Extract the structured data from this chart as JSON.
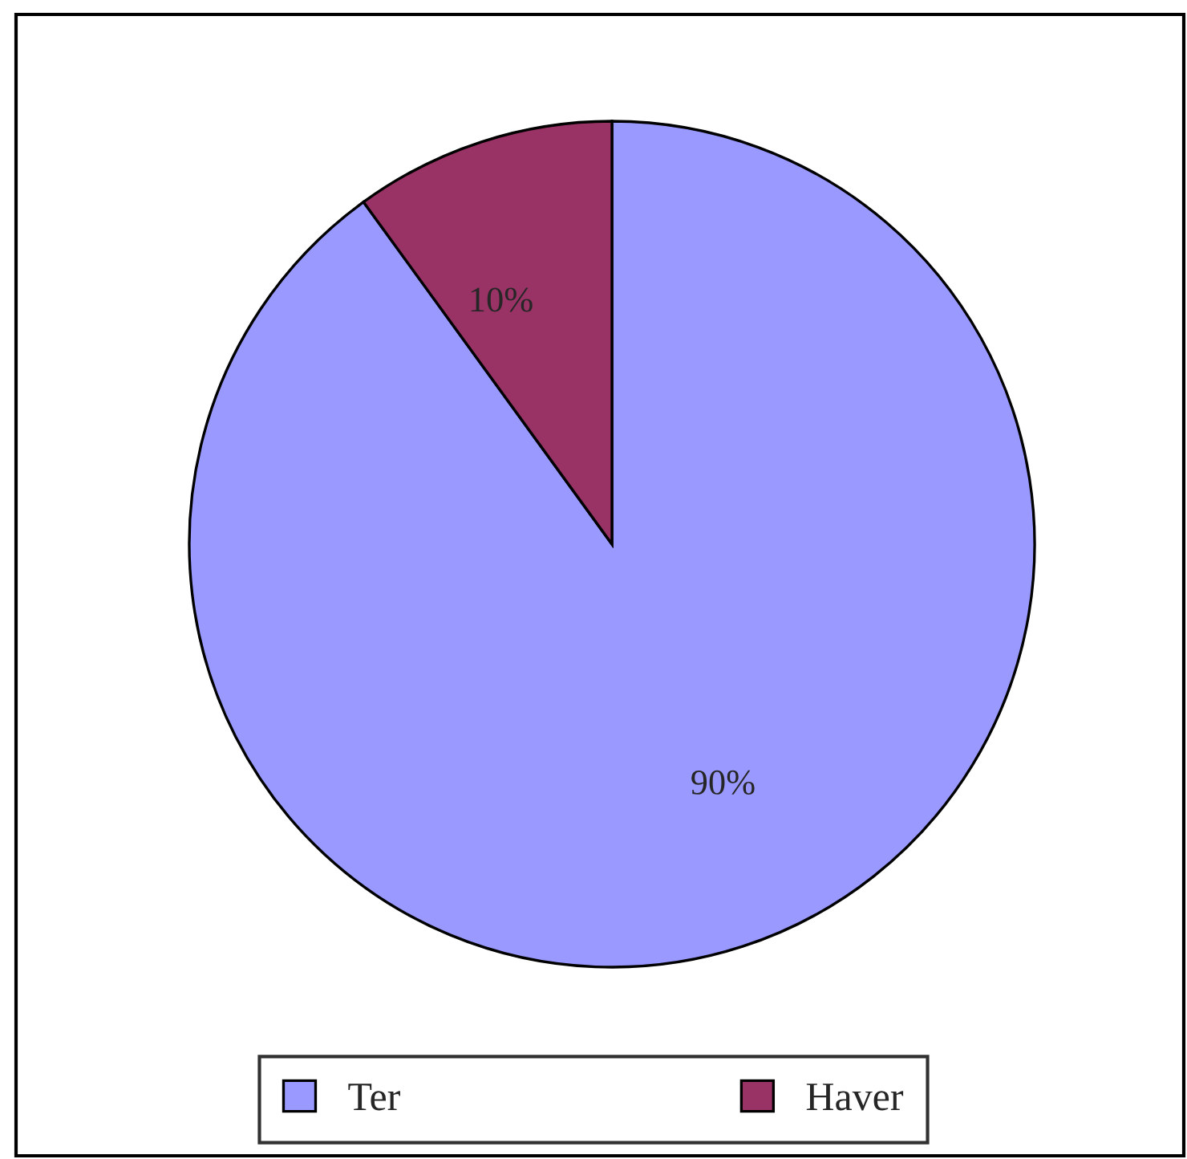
{
  "chart_data": {
    "type": "pie",
    "categories": [
      "Ter",
      "Haver"
    ],
    "values": [
      90,
      10
    ],
    "colors": [
      "#9999ff",
      "#993366"
    ],
    "value_labels": [
      "90%",
      "10%"
    ],
    "legend": "bottom"
  }
}
